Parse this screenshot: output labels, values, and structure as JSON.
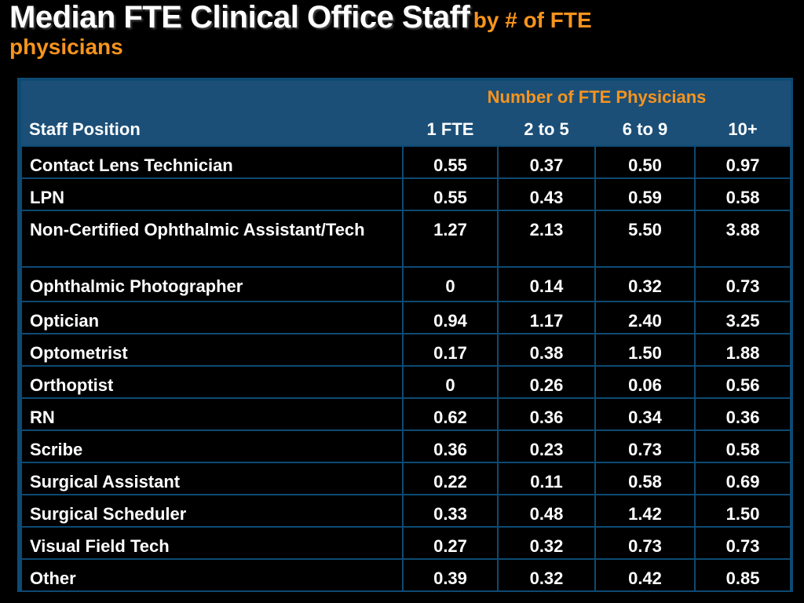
{
  "title": {
    "main": "Median FTE Clinical Office Staff",
    "sub": "by # of FTE",
    "sub2": "physicians"
  },
  "chart_data": {
    "type": "table",
    "group_header": "Number of FTE Physicians",
    "columns": [
      "Staff Position",
      "1 FTE",
      "2 to 5",
      "6 to 9",
      "10+"
    ],
    "rows": [
      {
        "position": "Contact Lens Technician",
        "values": [
          "0.55",
          "0.37",
          "0.50",
          "0.97"
        ]
      },
      {
        "position": "LPN",
        "values": [
          "0.55",
          "0.43",
          "0.59",
          "0.58"
        ]
      },
      {
        "position": "Non-Certified Ophthalmic Assistant/Tech",
        "values": [
          "1.27",
          "2.13",
          "5.50",
          "3.88"
        ]
      },
      {
        "position": "Ophthalmic Photographer",
        "values": [
          "0",
          "0.14",
          "0.32",
          "0.73"
        ]
      },
      {
        "position": "Optician",
        "values": [
          "0.94",
          "1.17",
          "2.40",
          "3.25"
        ]
      },
      {
        "position": "Optometrist",
        "values": [
          "0.17",
          "0.38",
          "1.50",
          "1.88"
        ]
      },
      {
        "position": "Orthoptist",
        "values": [
          "0",
          "0.26",
          "0.06",
          "0.56"
        ]
      },
      {
        "position": "RN",
        "values": [
          "0.62",
          "0.36",
          "0.34",
          "0.36"
        ]
      },
      {
        "position": "Scribe",
        "values": [
          "0.36",
          "0.23",
          "0.73",
          "0.58"
        ]
      },
      {
        "position": "Surgical Assistant",
        "values": [
          "0.22",
          "0.11",
          "0.58",
          "0.69"
        ]
      },
      {
        "position": "Surgical Scheduler",
        "values": [
          "0.33",
          "0.48",
          "1.42",
          "1.50"
        ]
      },
      {
        "position": "Visual Field Tech",
        "values": [
          "0.27",
          "0.32",
          "0.73",
          "0.73"
        ]
      },
      {
        "position": "Other",
        "values": [
          "0.39",
          "0.32",
          "0.42",
          "0.85"
        ]
      }
    ]
  },
  "colors": {
    "header_bg": "#1b4f78",
    "border": "#0d4a73",
    "accent": "#f7941d",
    "background": "#000000",
    "text": "#ffffff"
  }
}
